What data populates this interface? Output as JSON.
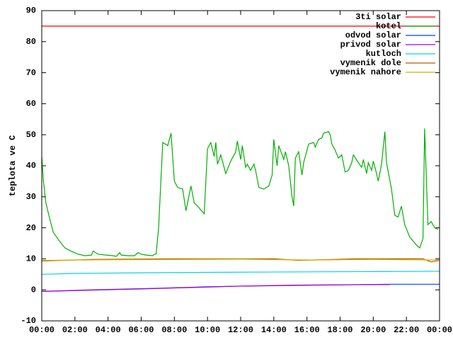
{
  "chart_data": {
    "type": "line",
    "ylabel": "teplota ve C",
    "xlim": [
      0,
      24
    ],
    "ylim": [
      -10,
      90
    ],
    "xticks": [
      {
        "value": 0,
        "label": "00:00"
      },
      {
        "value": 2,
        "label": "02:00"
      },
      {
        "value": 4,
        "label": "04:00"
      },
      {
        "value": 6,
        "label": "06:00"
      },
      {
        "value": 8,
        "label": "08:00"
      },
      {
        "value": 10,
        "label": "10:00"
      },
      {
        "value": 12,
        "label": "12:00"
      },
      {
        "value": 14,
        "label": "14:00"
      },
      {
        "value": 16,
        "label": "16:00"
      },
      {
        "value": 18,
        "label": "18:00"
      },
      {
        "value": 20,
        "label": "20:00"
      },
      {
        "value": 22,
        "label": "22:00"
      },
      {
        "value": 24,
        "label": "00:00"
      }
    ],
    "yticks": [
      -10,
      0,
      10,
      20,
      30,
      40,
      50,
      60,
      70,
      80,
      90
    ],
    "legend": "top-right",
    "grid": false,
    "series": [
      {
        "name": "3ti solar",
        "color": "#ff0000",
        "x": [
          0,
          24
        ],
        "values": [
          85,
          85
        ]
      },
      {
        "name": "kotel",
        "color": "#00b000",
        "x": [
          0,
          0.1,
          0.25,
          0.5,
          0.7,
          1.1,
          1.4,
          1.75,
          2.2,
          2.6,
          3.0,
          3.1,
          3.4,
          3.9,
          4.3,
          4.5,
          4.7,
          4.8,
          5.2,
          5.6,
          5.8,
          6.0,
          6.3,
          6.7,
          6.8,
          6.9,
          7.05,
          7.3,
          7.6,
          7.8,
          8.0,
          8.2,
          8.5,
          8.7,
          8.8,
          9.0,
          9.2,
          9.4,
          9.8,
          10.0,
          10.2,
          10.4,
          10.5,
          10.6,
          10.8,
          11.1,
          11.4,
          11.7,
          11.8,
          12.0,
          12.1,
          12.3,
          12.4,
          12.6,
          12.8,
          12.9,
          13.1,
          13.4,
          13.7,
          13.9,
          14.0,
          14.2,
          14.3,
          14.6,
          14.7,
          14.9,
          15.1,
          15.2,
          15.3,
          15.5,
          15.7,
          15.8,
          16.1,
          16.4,
          16.5,
          16.7,
          16.9,
          17.0,
          17.3,
          17.4,
          17.5,
          17.7,
          17.9,
          18.1,
          18.3,
          18.5,
          18.7,
          18.8,
          19.1,
          19.3,
          19.4,
          19.6,
          19.7,
          19.9,
          20.0,
          20.2,
          20.3,
          20.5,
          20.7,
          20.8,
          21.1,
          21.3,
          21.5,
          21.7,
          21.9,
          22.2,
          22.6,
          22.8,
          23.0,
          23.1,
          23.3,
          23.5,
          23.7,
          23.9
        ],
        "values": [
          43,
          35,
          28,
          22.5,
          18.5,
          15.5,
          13.5,
          12.5,
          11.5,
          11,
          11.2,
          12.5,
          11.5,
          11.2,
          11,
          10.8,
          12,
          11.2,
          11,
          11,
          12,
          11.5,
          11.2,
          11,
          11.5,
          11.5,
          20,
          47.5,
          46.5,
          50.5,
          35,
          33,
          32.5,
          25.5,
          28,
          33.5,
          28,
          27,
          24.5,
          45.5,
          47.5,
          43,
          47.5,
          40.5,
          43.5,
          37.5,
          41.5,
          44.5,
          48,
          42,
          46.5,
          39.5,
          40.5,
          38.5,
          40.5,
          38.5,
          33,
          32.5,
          33.5,
          37,
          48.5,
          40,
          46.5,
          42,
          44.5,
          40,
          30,
          27,
          42.5,
          44.5,
          37,
          41,
          47,
          47.5,
          46,
          48.5,
          49,
          50.5,
          51,
          50,
          47,
          45,
          42.5,
          43.5,
          38,
          38.5,
          41,
          43.5,
          41,
          39.5,
          42,
          37.5,
          41,
          38.5,
          41.5,
          37.5,
          35,
          40.5,
          51,
          41,
          32.5,
          24,
          23.5,
          27,
          21,
          17,
          14.5,
          13.5,
          16.5,
          52,
          21,
          22,
          20,
          19.5
        ]
      },
      {
        "name": "odvod solar",
        "color": "#0040ff",
        "x": [
          0,
          6,
          12,
          18,
          21,
          24
        ],
        "values": [
          -0.5,
          0.3,
          1.2,
          1.6,
          1.8,
          1.8
        ]
      },
      {
        "name": "privod solar",
        "color": "#b000d0",
        "x": [
          0,
          3,
          7,
          10,
          15,
          20,
          21
        ],
        "values": [
          -0.5,
          0,
          0.5,
          1,
          1.5,
          1.7,
          1.7
        ]
      },
      {
        "name": "kutloch",
        "color": "#00d8d8",
        "x": [
          0,
          2,
          6,
          12,
          20,
          24
        ],
        "values": [
          5,
          5.3,
          5.5,
          5.7,
          5.9,
          6
        ]
      },
      {
        "name": "vymenik dole",
        "color": "#b85c00",
        "x": [
          0,
          3,
          8,
          14,
          15.5,
          19,
          23,
          23.5,
          24
        ],
        "values": [
          9.3,
          9.8,
          10,
          10,
          9.5,
          10,
          10,
          9,
          9.5
        ]
      },
      {
        "name": "vymenik nahore",
        "color": "#c8b400",
        "x": [
          0,
          4,
          12,
          16,
          20,
          24
        ],
        "values": [
          9.5,
          9.7,
          9.9,
          9.6,
          9.8,
          9.6
        ]
      }
    ]
  }
}
